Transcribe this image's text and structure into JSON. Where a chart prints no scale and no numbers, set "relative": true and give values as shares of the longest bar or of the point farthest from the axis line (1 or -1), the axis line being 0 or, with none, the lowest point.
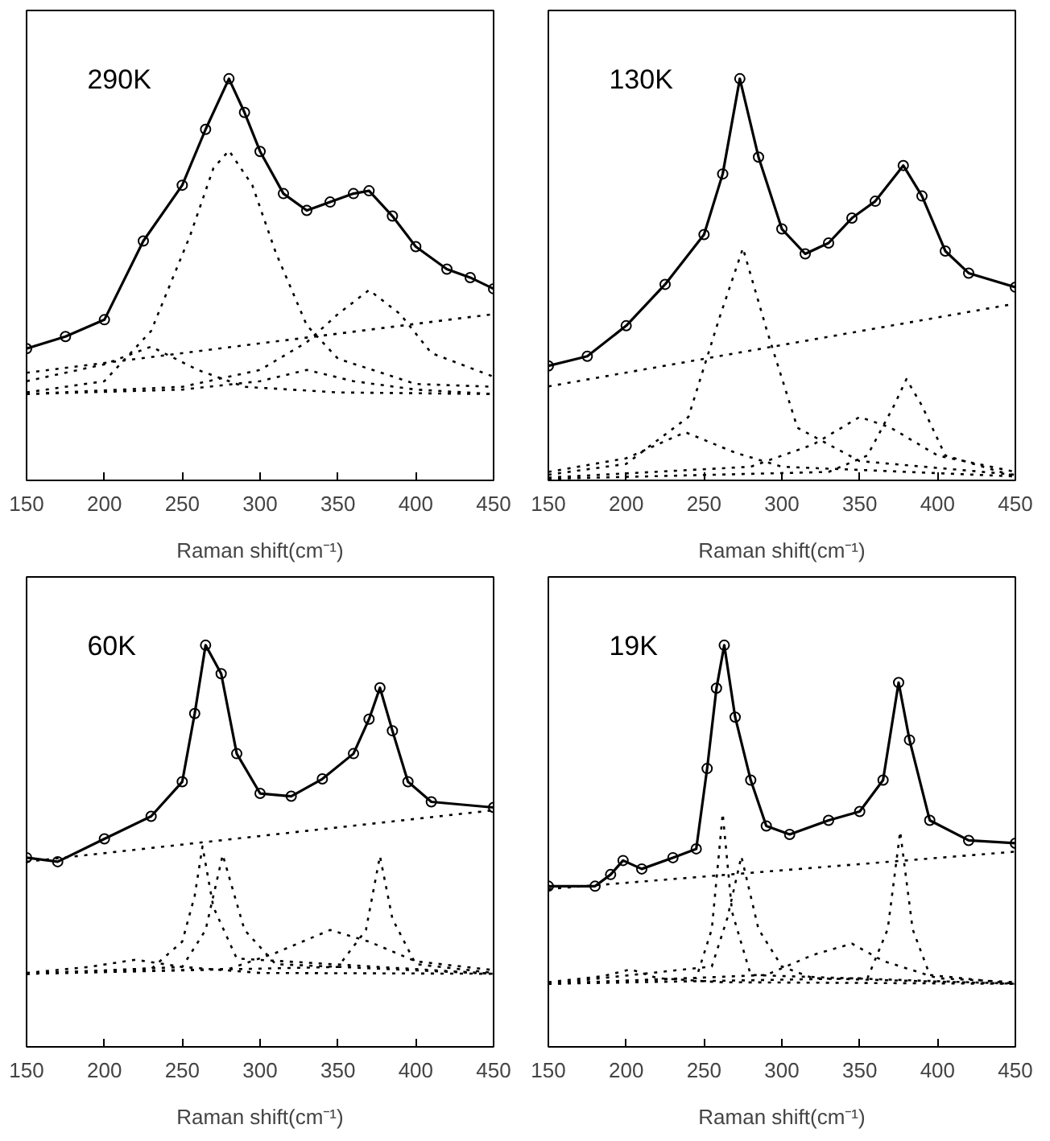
{
  "chart_data": [
    {
      "type": "line",
      "relative": true,
      "xlabel": "Raman shift(cm⁻¹)",
      "xlim": [
        150,
        450
      ],
      "xticks": [
        150,
        200,
        250,
        300,
        350,
        400,
        450
      ],
      "annotations": [
        "290K"
      ],
      "series": [
        {
          "type": "scatter",
          "marker": "circle",
          "color": "#000000",
          "x": [
            150,
            175,
            200,
            225,
            250,
            265,
            280,
            290,
            300,
            315,
            330,
            345,
            360,
            370,
            385,
            400,
            420,
            435,
            450
          ],
          "values": [
            0.328,
            0.358,
            0.4,
            0.596,
            0.735,
            0.874,
            1.0,
            0.916,
            0.819,
            0.714,
            0.672,
            0.693,
            0.714,
            0.721,
            0.658,
            0.582,
            0.526,
            0.505,
            0.477
          ]
        },
        {
          "line_style": "solid",
          "color": "#000000",
          "x": [
            150,
            175,
            200,
            225,
            250,
            265,
            280,
            290,
            300,
            315,
            330,
            345,
            360,
            370,
            385,
            400,
            420,
            435,
            450
          ],
          "values": [
            0.328,
            0.358,
            0.4,
            0.596,
            0.735,
            0.874,
            1.0,
            0.916,
            0.819,
            0.714,
            0.672,
            0.693,
            0.714,
            0.721,
            0.658,
            0.582,
            0.526,
            0.505,
            0.477
          ]
        },
        {
          "type": "line",
          "line_style": "dotted",
          "color": "#000000",
          "x": [
            150,
            450
          ],
          "values": [
            0.268,
            0.414
          ]
        },
        {
          "type": "line",
          "line_style": "dotted",
          "color": "#000000",
          "x": [
            150,
            200,
            230,
            255,
            270,
            280,
            295,
            310,
            330,
            350,
            400,
            450
          ],
          "values": [
            0.219,
            0.247,
            0.372,
            0.609,
            0.777,
            0.821,
            0.735,
            0.568,
            0.386,
            0.303,
            0.24,
            0.233
          ]
        },
        {
          "type": "line",
          "line_style": "dotted",
          "color": "#000000",
          "x": [
            150,
            250,
            300,
            330,
            350,
            370,
            390,
            410,
            450
          ],
          "values": [
            0.215,
            0.233,
            0.275,
            0.344,
            0.414,
            0.474,
            0.414,
            0.317,
            0.258
          ]
        },
        {
          "type": "line",
          "line_style": "dotted",
          "color": "#000000",
          "x": [
            150,
            200,
            230,
            260,
            290,
            350,
            450
          ],
          "values": [
            0.247,
            0.289,
            0.333,
            0.275,
            0.233,
            0.219,
            0.215
          ]
        },
        {
          "type": "line",
          "line_style": "dotted",
          "color": "#000000",
          "x": [
            150,
            250,
            300,
            330,
            360,
            400,
            450
          ],
          "values": [
            0.215,
            0.226,
            0.247,
            0.275,
            0.247,
            0.226,
            0.215
          ]
        }
      ]
    },
    {
      "type": "line",
      "relative": true,
      "xlabel": "Raman shift(cm⁻¹)",
      "xlim": [
        150,
        450
      ],
      "xticks": [
        150,
        200,
        250,
        300,
        350,
        400,
        450
      ],
      "annotations": [
        "130K"
      ],
      "series": [
        {
          "type": "scatter",
          "marker": "circle",
          "color": "#000000",
          "x": [
            150,
            175,
            200,
            225,
            250,
            262,
            273,
            285,
            300,
            315,
            330,
            345,
            360,
            378,
            390,
            405,
            420,
            450
          ],
          "values": [
            0.285,
            0.309,
            0.385,
            0.488,
            0.612,
            0.763,
            1.0,
            0.805,
            0.626,
            0.564,
            0.591,
            0.653,
            0.695,
            0.784,
            0.708,
            0.571,
            0.516,
            0.481
          ]
        },
        {
          "line_style": "solid",
          "color": "#000000",
          "x": [
            150,
            175,
            200,
            225,
            250,
            262,
            273,
            285,
            300,
            315,
            330,
            345,
            360,
            378,
            390,
            405,
            420,
            450
          ],
          "values": [
            0.285,
            0.309,
            0.385,
            0.488,
            0.612,
            0.763,
            1.0,
            0.805,
            0.626,
            0.564,
            0.591,
            0.653,
            0.695,
            0.784,
            0.708,
            0.571,
            0.516,
            0.481
          ]
        },
        {
          "type": "line",
          "line_style": "dotted",
          "color": "#000000",
          "x": [
            150,
            450
          ],
          "values": [
            0.234,
            0.44
          ]
        },
        {
          "type": "line",
          "line_style": "dotted",
          "color": "#000000",
          "x": [
            150,
            200,
            240,
            260,
            275,
            290,
            310,
            350,
            450
          ],
          "values": [
            0.014,
            0.041,
            0.158,
            0.406,
            0.578,
            0.378,
            0.131,
            0.048,
            0.014
          ]
        },
        {
          "type": "line",
          "line_style": "dotted",
          "color": "#000000",
          "x": [
            150,
            200,
            238,
            270,
            300,
            450
          ],
          "values": [
            0.021,
            0.055,
            0.12,
            0.069,
            0.034,
            0.01
          ]
        },
        {
          "type": "line",
          "line_style": "dotted",
          "color": "#000000",
          "x": [
            150,
            280,
            320,
            350,
            370,
            400,
            450
          ],
          "values": [
            0.007,
            0.034,
            0.089,
            0.158,
            0.131,
            0.062,
            0.021
          ]
        },
        {
          "type": "line",
          "line_style": "dotted",
          "color": "#000000",
          "x": [
            150,
            330,
            355,
            372,
            380,
            390,
            405,
            450
          ],
          "values": [
            0.004,
            0.021,
            0.062,
            0.186,
            0.252,
            0.186,
            0.062,
            0.01
          ]
        }
      ]
    },
    {
      "type": "line",
      "relative": true,
      "xlabel": "Raman shift(cm⁻¹)",
      "xlim": [
        150,
        450
      ],
      "xticks": [
        150,
        200,
        250,
        300,
        350,
        400,
        450
      ],
      "annotations": [
        "60K"
      ],
      "series": [
        {
          "type": "scatter",
          "marker": "circle",
          "color": "#000000",
          "x": [
            150,
            170,
            200,
            230,
            250,
            258,
            265,
            275,
            285,
            300,
            320,
            340,
            360,
            370,
            377,
            385,
            395,
            410,
            450
          ],
          "values": [
            0.471,
            0.461,
            0.518,
            0.574,
            0.66,
            0.83,
            1.0,
            0.929,
            0.73,
            0.631,
            0.624,
            0.667,
            0.73,
            0.816,
            0.894,
            0.787,
            0.66,
            0.61,
            0.596
          ]
        },
        {
          "line_style": "solid",
          "color": "#000000",
          "x": [
            150,
            170,
            200,
            230,
            250,
            258,
            265,
            275,
            285,
            300,
            320,
            340,
            360,
            370,
            377,
            385,
            395,
            410,
            450
          ],
          "values": [
            0.471,
            0.461,
            0.518,
            0.574,
            0.66,
            0.83,
            1.0,
            0.929,
            0.73,
            0.631,
            0.624,
            0.667,
            0.73,
            0.816,
            0.894,
            0.787,
            0.66,
            0.61,
            0.596
          ]
        },
        {
          "type": "line",
          "line_style": "dotted",
          "color": "#000000",
          "x": [
            150,
            450
          ],
          "values": [
            0.461,
            0.589
          ]
        },
        {
          "type": "line",
          "line_style": "dotted",
          "color": "#000000",
          "x": [
            150,
            230,
            250,
            258,
            263,
            270,
            285,
            450
          ],
          "values": [
            0.182,
            0.194,
            0.262,
            0.376,
            0.499,
            0.348,
            0.22,
            0.182
          ]
        },
        {
          "type": "line",
          "line_style": "dotted",
          "color": "#000000",
          "x": [
            150,
            250,
            265,
            276,
            290,
            310,
            450
          ],
          "values": [
            0.182,
            0.199,
            0.291,
            0.478,
            0.291,
            0.206,
            0.182
          ]
        },
        {
          "type": "line",
          "line_style": "dotted",
          "color": "#000000",
          "x": [
            150,
            190,
            220,
            250,
            300,
            450
          ],
          "values": [
            0.184,
            0.199,
            0.217,
            0.199,
            0.184,
            0.182
          ]
        },
        {
          "type": "line",
          "line_style": "dotted",
          "color": "#000000",
          "x": [
            150,
            280,
            310,
            345,
            370,
            400,
            450
          ],
          "values": [
            0.182,
            0.194,
            0.234,
            0.291,
            0.262,
            0.213,
            0.191
          ]
        },
        {
          "type": "line",
          "line_style": "dotted",
          "color": "#000000",
          "x": [
            150,
            350,
            368,
            377,
            385,
            400,
            450
          ],
          "values": [
            0.182,
            0.199,
            0.291,
            0.475,
            0.319,
            0.206,
            0.184
          ]
        }
      ]
    },
    {
      "type": "line",
      "relative": true,
      "xlabel": "Raman shift(cm⁻¹)",
      "xlim": [
        150,
        450
      ],
      "xticks": [
        150,
        200,
        250,
        300,
        350,
        400,
        450
      ],
      "annotations": [
        "19K"
      ],
      "series": [
        {
          "type": "scatter",
          "marker": "circle",
          "color": "#000000",
          "x": [
            150,
            180,
            190,
            198,
            210,
            230,
            245,
            252,
            258,
            263,
            270,
            280,
            290,
            305,
            330,
            350,
            365,
            375,
            382,
            395,
            420,
            450
          ],
          "values": [
            0.4,
            0.4,
            0.429,
            0.464,
            0.443,
            0.471,
            0.493,
            0.693,
            0.893,
            1.0,
            0.821,
            0.664,
            0.55,
            0.529,
            0.564,
            0.586,
            0.664,
            0.907,
            0.764,
            0.564,
            0.514,
            0.507
          ]
        },
        {
          "line_style": "solid",
          "color": "#000000",
          "x": [
            150,
            180,
            190,
            198,
            210,
            230,
            245,
            252,
            258,
            263,
            270,
            280,
            290,
            305,
            330,
            350,
            365,
            375,
            382,
            395,
            420,
            450
          ],
          "values": [
            0.4,
            0.4,
            0.429,
            0.464,
            0.443,
            0.471,
            0.493,
            0.693,
            0.893,
            1.0,
            0.821,
            0.664,
            0.55,
            0.529,
            0.564,
            0.586,
            0.664,
            0.907,
            0.764,
            0.564,
            0.514,
            0.507
          ]
        },
        {
          "type": "line",
          "line_style": "dotted",
          "color": "#000000",
          "x": [
            150,
            450
          ],
          "values": [
            0.393,
            0.486
          ]
        },
        {
          "type": "line",
          "line_style": "dotted",
          "color": "#000000",
          "x": [
            150,
            245,
            255,
            262,
            268,
            280,
            450
          ],
          "values": [
            0.157,
            0.171,
            0.293,
            0.581,
            0.336,
            0.179,
            0.157
          ]
        },
        {
          "type": "line",
          "line_style": "dotted",
          "color": "#000000",
          "x": [
            150,
            255,
            265,
            274,
            285,
            300,
            320,
            450
          ],
          "values": [
            0.157,
            0.2,
            0.321,
            0.474,
            0.293,
            0.2,
            0.171,
            0.157
          ]
        },
        {
          "type": "line",
          "line_style": "dotted",
          "color": "#000000",
          "x": [
            150,
            185,
            203,
            220,
            260,
            450
          ],
          "values": [
            0.161,
            0.176,
            0.193,
            0.171,
            0.161,
            0.157
          ]
        },
        {
          "type": "line",
          "line_style": "dotted",
          "color": "#000000",
          "x": [
            150,
            290,
            320,
            345,
            365,
            400,
            450
          ],
          "values": [
            0.157,
            0.179,
            0.229,
            0.257,
            0.214,
            0.171,
            0.161
          ]
        },
        {
          "type": "line",
          "line_style": "dotted",
          "color": "#000000",
          "x": [
            150,
            355,
            368,
            376,
            384,
            395,
            450
          ],
          "values": [
            0.157,
            0.171,
            0.293,
            0.536,
            0.293,
            0.179,
            0.157
          ]
        }
      ]
    }
  ]
}
